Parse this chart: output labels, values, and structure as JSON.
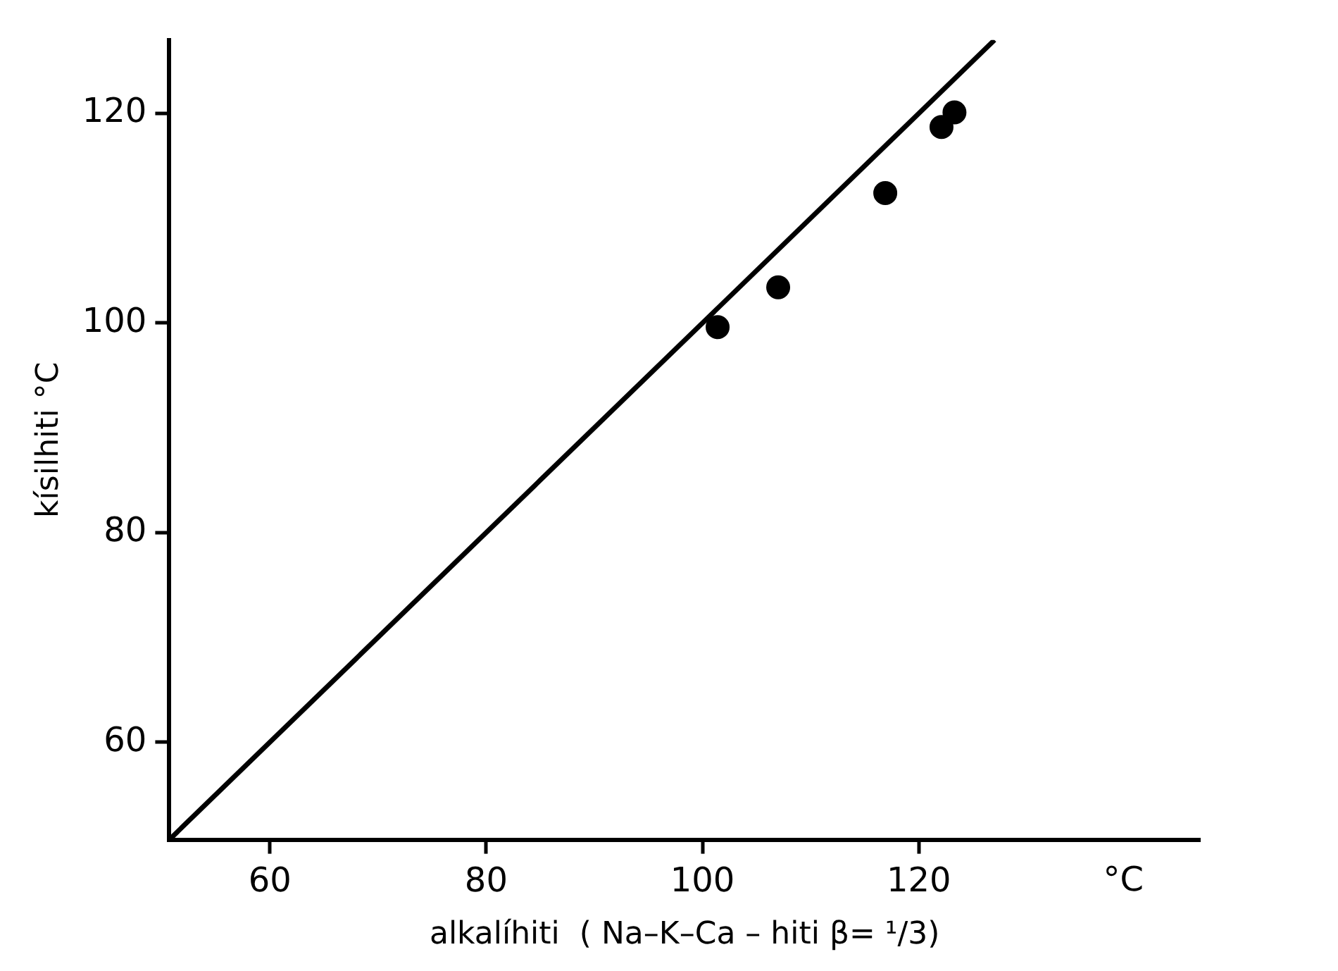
{
  "chart_data": {
    "type": "scatter",
    "xlabel": "alkalíhiti  ( Na–K–Ca – hiti β= ¹/3)",
    "ylabel": "kísilhiti °C",
    "annotations": [
      "°C"
    ],
    "xlim": [
      50.7,
      146
    ],
    "ylim": [
      50.7,
      127
    ],
    "xticks": [
      60,
      80,
      100,
      120
    ],
    "yticks": [
      60,
      80,
      100,
      120
    ],
    "grid": false,
    "legend": false,
    "marker": "circle",
    "series": [
      {
        "color": "#000000",
        "x": [
          101.4,
          107,
          116.9,
          122.1,
          123.3
        ],
        "values": [
          99.6,
          103.4,
          112.4,
          118.7,
          120.1
        ]
      },
      {
        "type": "line",
        "color": "#000000",
        "x": [
          50.7,
          127
        ],
        "values": [
          50.7,
          127
        ],
        "line_style": "solid",
        "marker": "none"
      }
    ]
  }
}
